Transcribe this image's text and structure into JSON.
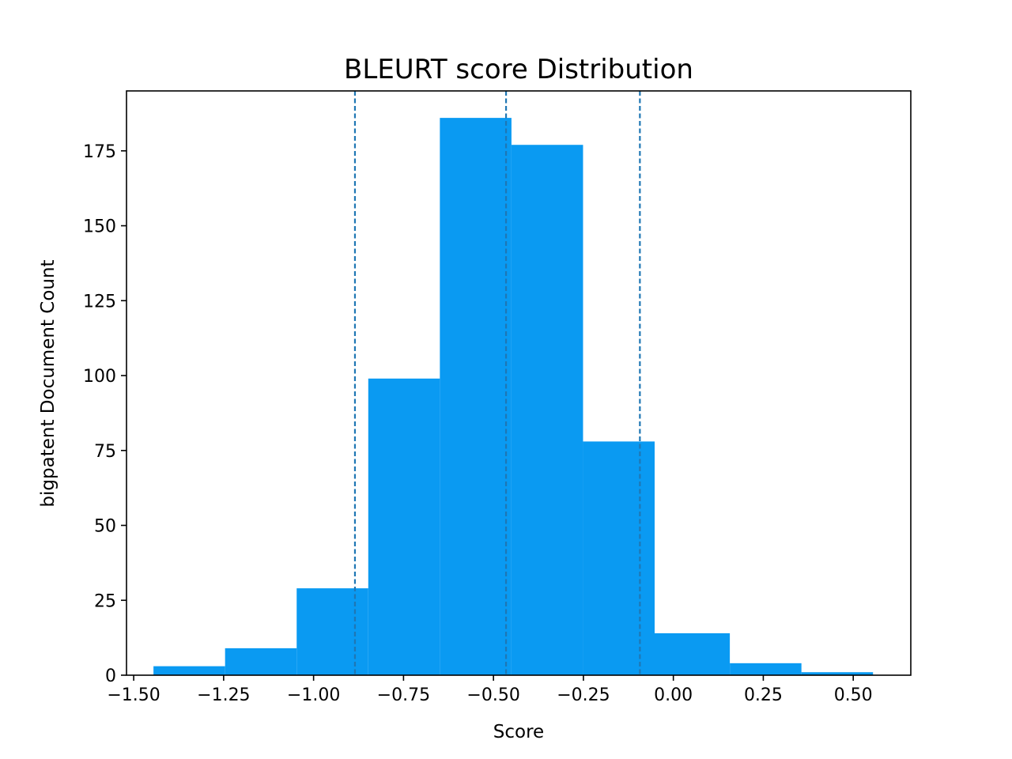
{
  "chart_data": {
    "type": "bar",
    "title": "BLEURT score Distribution",
    "xlabel": "Score",
    "ylabel": "bigpatent Document Count",
    "xlim": [
      -1.52,
      0.66
    ],
    "ylim": [
      0,
      195
    ],
    "xticks": [
      -1.5,
      -1.25,
      -1.0,
      -0.75,
      -0.5,
      -0.25,
      0.0,
      0.25,
      0.5
    ],
    "xtick_labels": [
      "−1.50",
      "−1.25",
      "−1.00",
      "−0.75",
      "−0.50",
      "−0.25",
      "0.00",
      "0.25",
      "0.50"
    ],
    "yticks": [
      0,
      25,
      50,
      75,
      100,
      125,
      150,
      175
    ],
    "ytick_labels": [
      "0",
      "25",
      "50",
      "75",
      "100",
      "125",
      "150",
      "175"
    ],
    "bin_edges": [
      -1.445,
      -1.246,
      -1.047,
      -0.848,
      -0.649,
      -0.45,
      -0.251,
      -0.052,
      0.157,
      0.356,
      0.555
    ],
    "values": [
      3,
      9,
      29,
      99,
      186,
      177,
      78,
      14,
      4,
      1
    ],
    "vlines": [
      -0.885,
      -0.465,
      -0.093
    ],
    "bar_color": "#0a9af2",
    "vline_color": "#1f77b4",
    "grid": false,
    "legend": false
  }
}
